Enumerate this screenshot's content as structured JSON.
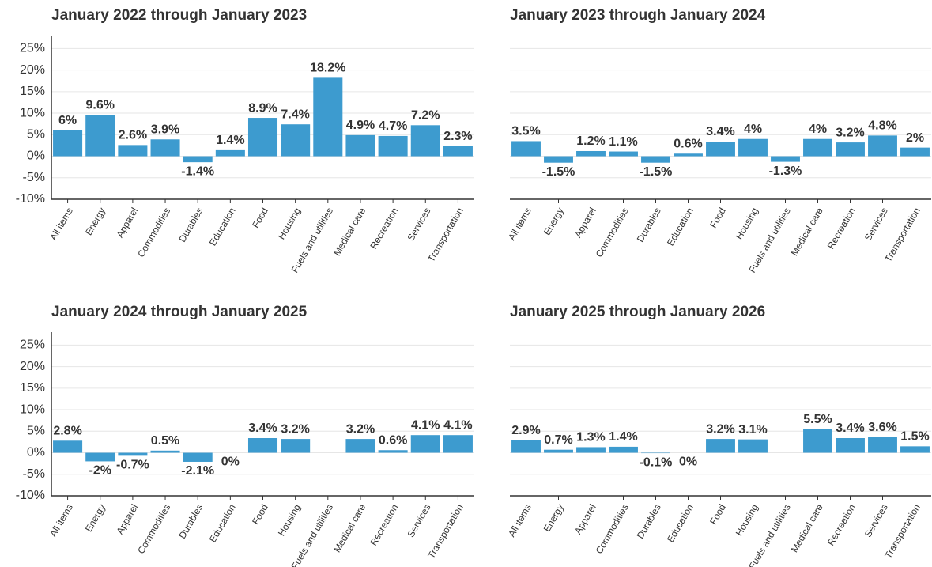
{
  "chart_data": [
    {
      "type": "bar",
      "title": "January 2022 through January 2023",
      "categories": [
        "All items",
        "Energy",
        "Apparel",
        "Commodities",
        "Durables",
        "Education",
        "Food",
        "Housing",
        "Fuels and utilities",
        "Medical care",
        "Recreation",
        "Services",
        "Transportation"
      ],
      "values": [
        6,
        9.6,
        2.6,
        3.9,
        -1.4,
        1.4,
        8.9,
        7.4,
        18.2,
        4.9,
        4.7,
        7.2,
        2.3
      ],
      "value_labels": [
        "6%",
        "9.6%",
        "2.6%",
        "3.9%",
        "-1.4%",
        "1.4%",
        "8.9%",
        "7.4%",
        "18.2%",
        "4.9%",
        "4.7%",
        "7.2%",
        "2.3%"
      ],
      "color": "#3d9bcf",
      "ylim": [
        -10,
        28
      ],
      "yticks": [
        {
          "value": -10,
          "label": "-10%"
        },
        {
          "value": -5,
          "label": "-5%"
        },
        {
          "value": 0,
          "label": "0%"
        },
        {
          "value": 5,
          "label": "5%"
        },
        {
          "value": 10,
          "label": "10%"
        },
        {
          "value": 15,
          "label": "15%"
        },
        {
          "value": 20,
          "label": "20%"
        },
        {
          "value": 25,
          "label": "25%"
        }
      ],
      "grid": true
    },
    {
      "type": "bar",
      "title": "January 2023 through January 2024",
      "categories": [
        "All items",
        "Energy",
        "Apparel",
        "Commodities",
        "Durables",
        "Education",
        "Food",
        "Housing",
        "Fuels and utilities",
        "Medical care",
        "Recreation",
        "Services",
        "Transportation"
      ],
      "values": [
        3.5,
        -1.5,
        1.2,
        1.1,
        -1.5,
        0.6,
        3.4,
        4,
        -1.3,
        4,
        3.2,
        4.8,
        2
      ],
      "value_labels": [
        "3.5%",
        "-1.5%",
        "1.2%",
        "1.1%",
        "-1.5%",
        "0.6%",
        "3.4%",
        "4%",
        "-1.3%",
        "4%",
        "3.2%",
        "4.8%",
        "2%"
      ],
      "color": "#3d9bcf",
      "ylim": [
        -10,
        28
      ],
      "yticks": [
        -10,
        -5,
        0,
        5,
        10,
        15,
        20,
        25
      ],
      "grid": true
    },
    {
      "type": "bar",
      "title": "January 2024 through January 2025",
      "categories": [
        "All items",
        "Energy",
        "Apparel",
        "Commodities",
        "Durables",
        "Education",
        "Food",
        "Housing",
        "Fuels and utilities",
        "Medical care",
        "Recreation",
        "Services",
        "Transportation"
      ],
      "values": [
        2.8,
        -2,
        -0.7,
        0.5,
        -2.1,
        0,
        3.4,
        3.2,
        null,
        3.2,
        0.6,
        4.1,
        4.1
      ],
      "value_labels": [
        "2.8%",
        "-2%",
        "-0.7%",
        "0.5%",
        "-2.1%",
        "0%",
        "3.4%",
        "3.2%",
        null,
        "3.2%",
        "0.6%",
        "4.1%",
        "4.1%"
      ],
      "color": "#3d9bcf",
      "ylim": [
        -10,
        28
      ],
      "yticks": [
        {
          "value": -10,
          "label": "-10%"
        },
        {
          "value": -5,
          "label": "-5%"
        },
        {
          "value": 0,
          "label": "0%"
        },
        {
          "value": 5,
          "label": "5%"
        },
        {
          "value": 10,
          "label": "10%"
        },
        {
          "value": 15,
          "label": "15%"
        },
        {
          "value": 20,
          "label": "20%"
        },
        {
          "value": 25,
          "label": "25%"
        }
      ],
      "grid": true
    },
    {
      "type": "bar",
      "title": "January 2025 through January 2026",
      "categories": [
        "All items",
        "Energy",
        "Apparel",
        "Commodities",
        "Durables",
        "Education",
        "Food",
        "Housing",
        "Fuels and utilities",
        "Medical care",
        "Recreation",
        "Services",
        "Transportation"
      ],
      "values": [
        2.9,
        0.7,
        1.3,
        1.4,
        -0.1,
        0,
        3.2,
        3.1,
        null,
        5.5,
        3.4,
        3.6,
        1.5
      ],
      "value_labels": [
        "2.9%",
        "0.7%",
        "1.3%",
        "1.4%",
        "-0.1%",
        "0%",
        "3.2%",
        "3.1%",
        null,
        "5.5%",
        "3.4%",
        "3.6%",
        "1.5%"
      ],
      "color": "#3d9bcf",
      "ylim": [
        -10,
        28
      ],
      "yticks": [
        -10,
        -5,
        0,
        5,
        10,
        15,
        20,
        25
      ],
      "grid": true
    }
  ]
}
